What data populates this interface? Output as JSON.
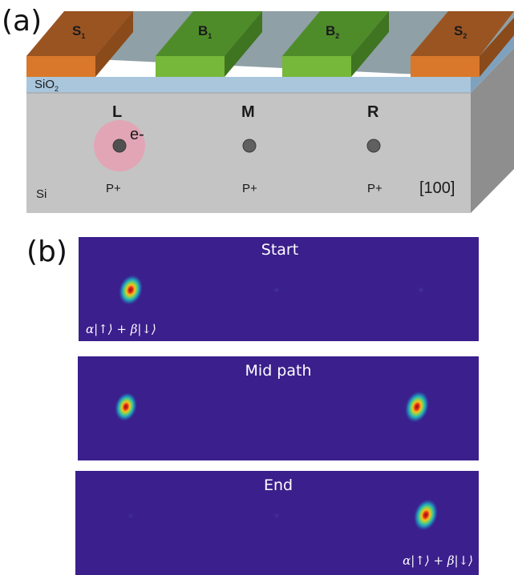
{
  "panel_a": {
    "label": "(a)",
    "gates": [
      {
        "name": "gate-s1",
        "letter": "S",
        "sub": "1",
        "color": "#d9782a"
      },
      {
        "name": "gate-b1",
        "letter": "B",
        "sub": "1",
        "color": "#76b83a"
      },
      {
        "name": "gate-b2",
        "letter": "B",
        "sub": "2",
        "color": "#76b83a"
      },
      {
        "name": "gate-s2",
        "letter": "S",
        "sub": "2",
        "color": "#d9782a"
      }
    ],
    "oxide": {
      "label": "SiO",
      "sub": "2",
      "color": "#a9c6dc"
    },
    "substrate": {
      "label": "Si",
      "color": "#c4c4c4"
    },
    "sites": [
      {
        "letter": "L",
        "dopant": "P+"
      },
      {
        "letter": "M",
        "dopant": "P+"
      },
      {
        "letter": "R",
        "dopant": "P+"
      }
    ],
    "electron_label": "e-",
    "orientation": "[100]"
  },
  "panel_b": {
    "label": "(b)",
    "background_color": "#3b1f8c",
    "snapshots": [
      {
        "title": "Start",
        "state": "α|↑⟩ + β|↓⟩",
        "state_position": "bottom-left"
      },
      {
        "title": "Mid path",
        "state": "",
        "state_position": "none"
      },
      {
        "title": "End",
        "state": "α|↑⟩ + β|↓⟩",
        "state_position": "bottom-right"
      }
    ]
  }
}
